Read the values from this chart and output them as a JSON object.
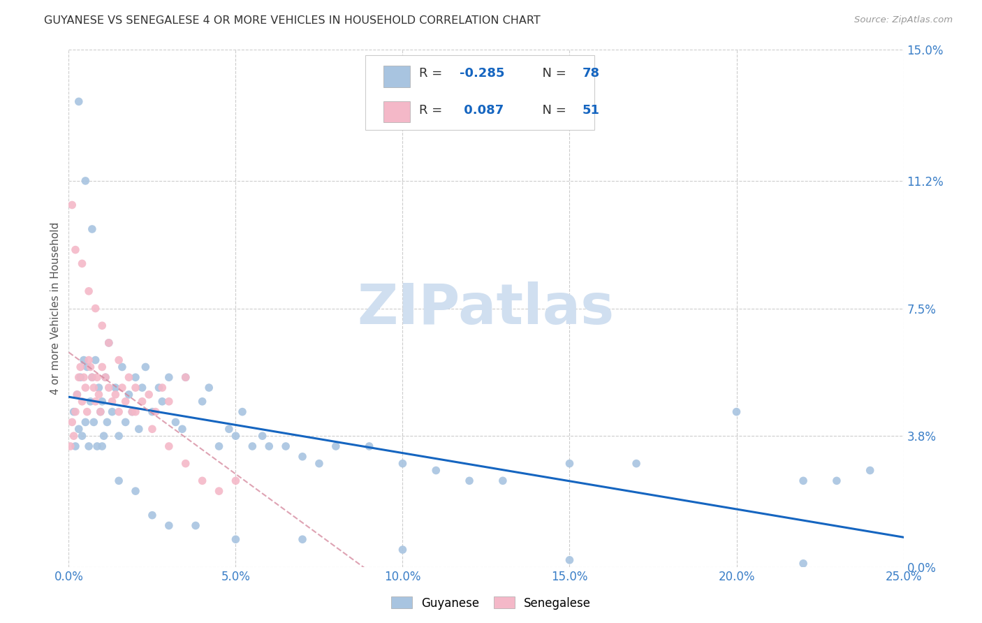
{
  "title": "GUYANESE VS SENEGALESE 4 OR MORE VEHICLES IN HOUSEHOLD CORRELATION CHART",
  "source": "Source: ZipAtlas.com",
  "xtick_vals": [
    0.0,
    5.0,
    10.0,
    15.0,
    20.0,
    25.0
  ],
  "ytick_vals": [
    0.0,
    3.8,
    7.5,
    11.2,
    15.0
  ],
  "ylabel_label": "4 or more Vehicles in Household",
  "legend_R1": "-0.285",
  "legend_N1": "78",
  "legend_R2": "0.087",
  "legend_N2": "51",
  "guyanese_color": "#a8c4e0",
  "senegalese_color": "#f4b8c8",
  "guyanese_line_color": "#1565c0",
  "senegalese_line_color": "#d4849a",
  "watermark": "ZIPatlas",
  "watermark_color": "#d0dff0",
  "xlim": [
    0.0,
    25.0
  ],
  "ylim": [
    0.0,
    15.0
  ],
  "guy_x": [
    0.15,
    0.2,
    0.25,
    0.3,
    0.35,
    0.4,
    0.45,
    0.5,
    0.55,
    0.6,
    0.65,
    0.7,
    0.75,
    0.8,
    0.85,
    0.9,
    0.95,
    1.0,
    1.05,
    1.1,
    1.15,
    1.2,
    1.3,
    1.4,
    1.5,
    1.6,
    1.7,
    1.8,
    1.9,
    2.0,
    2.1,
    2.2,
    2.3,
    2.5,
    2.7,
    2.8,
    3.0,
    3.2,
    3.4,
    3.5,
    4.0,
    4.2,
    4.5,
    4.8,
    5.0,
    5.2,
    5.5,
    5.8,
    6.0,
    6.5,
    7.0,
    7.5,
    8.0,
    9.0,
    10.0,
    11.0,
    12.0,
    13.0,
    15.0,
    17.0,
    20.0,
    22.0,
    23.0,
    24.0,
    0.3,
    0.5,
    0.7,
    1.0,
    1.5,
    2.0,
    2.5,
    3.0,
    3.8,
    5.0,
    7.0,
    10.0,
    15.0,
    22.0
  ],
  "guy_y": [
    4.5,
    3.5,
    5.0,
    4.0,
    5.5,
    3.8,
    6.0,
    4.2,
    5.8,
    3.5,
    4.8,
    5.5,
    4.2,
    6.0,
    3.5,
    5.2,
    4.5,
    4.8,
    3.8,
    5.5,
    4.2,
    6.5,
    4.5,
    5.2,
    3.8,
    5.8,
    4.2,
    5.0,
    4.5,
    5.5,
    4.0,
    5.2,
    5.8,
    4.5,
    5.2,
    4.8,
    5.5,
    4.2,
    4.0,
    5.5,
    4.8,
    5.2,
    3.5,
    4.0,
    3.8,
    4.5,
    3.5,
    3.8,
    3.5,
    3.5,
    3.2,
    3.0,
    3.5,
    3.5,
    3.0,
    2.8,
    2.5,
    2.5,
    3.0,
    3.0,
    4.5,
    2.5,
    2.5,
    2.8,
    13.5,
    11.2,
    9.8,
    3.5,
    2.5,
    2.2,
    1.5,
    1.2,
    1.2,
    0.8,
    0.8,
    0.5,
    0.2,
    0.1
  ],
  "sen_x": [
    0.05,
    0.1,
    0.15,
    0.2,
    0.25,
    0.3,
    0.35,
    0.4,
    0.45,
    0.5,
    0.55,
    0.6,
    0.65,
    0.7,
    0.75,
    0.8,
    0.85,
    0.9,
    0.95,
    1.0,
    1.1,
    1.2,
    1.3,
    1.4,
    1.5,
    1.6,
    1.7,
    1.8,
    1.9,
    2.0,
    2.2,
    2.4,
    2.6,
    2.8,
    3.0,
    3.5,
    0.1,
    0.2,
    0.4,
    0.6,
    0.8,
    1.0,
    1.2,
    1.5,
    2.0,
    2.5,
    3.0,
    3.5,
    4.0,
    4.5,
    5.0
  ],
  "sen_y": [
    3.5,
    4.2,
    3.8,
    4.5,
    5.0,
    5.5,
    5.8,
    4.8,
    5.5,
    5.2,
    4.5,
    6.0,
    5.8,
    5.5,
    5.2,
    4.8,
    5.5,
    5.0,
    4.5,
    5.8,
    5.5,
    5.2,
    4.8,
    5.0,
    4.5,
    5.2,
    4.8,
    5.5,
    4.5,
    5.2,
    4.8,
    5.0,
    4.5,
    5.2,
    4.8,
    5.5,
    10.5,
    9.2,
    8.8,
    8.0,
    7.5,
    7.0,
    6.5,
    6.0,
    4.5,
    4.0,
    3.5,
    3.0,
    2.5,
    2.2,
    2.5
  ]
}
